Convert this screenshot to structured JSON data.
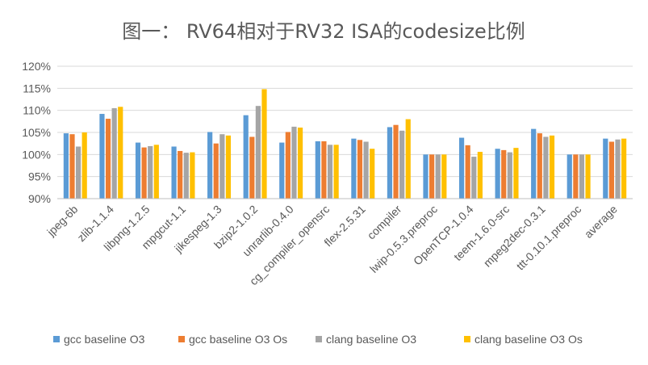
{
  "chart_data": {
    "type": "bar",
    "title": "图一： RV64相对于RV32 ISA的codesize比例",
    "xlabel": "",
    "ylabel": "",
    "ylim": [
      90,
      120
    ],
    "y_ticks": [
      "90%",
      "95%",
      "100%",
      "105%",
      "110%",
      "115%",
      "120%"
    ],
    "y_tick_values": [
      90,
      95,
      100,
      105,
      110,
      115,
      120
    ],
    "grid": true,
    "legend_position": "bottom",
    "categories": [
      "jpeg-6b",
      "zlib-1.1.4",
      "libpng-1.2.5",
      "mpgcut-1.1",
      "jikespeg-1.3",
      "bzip2-1.0.2",
      "unrarlib-0.4.0",
      "cg_compiler_opensrc",
      "flex-2.5.31",
      "compiler",
      "lwip-0.5.3.preproc",
      "OpenTCP-1.0.4",
      "teem-1.6.0-src",
      "mpeg2dec-0.3.1",
      "ttt-0.10.1.preproc",
      "average"
    ],
    "series": [
      {
        "name": "gcc baseline O3",
        "color": "#5B9BD5",
        "values": [
          104.8,
          109.2,
          102.7,
          101.8,
          105.1,
          108.9,
          102.7,
          103.0,
          103.6,
          106.2,
          100.0,
          103.8,
          101.3,
          105.8,
          100.0,
          103.6
        ]
      },
      {
        "name": "gcc baseline O3 Os",
        "color": "#ED7D31",
        "values": [
          104.6,
          108.1,
          101.6,
          100.8,
          102.5,
          104.0,
          105.1,
          103.0,
          103.3,
          106.7,
          100.0,
          102.1,
          101.0,
          104.8,
          100.0,
          102.9
        ]
      },
      {
        "name": "clang baseline O3",
        "color": "#A5A5A5",
        "values": [
          101.8,
          110.5,
          101.9,
          100.4,
          104.6,
          111.0,
          106.3,
          102.2,
          102.9,
          105.4,
          100.0,
          99.5,
          100.5,
          104.0,
          100.0,
          103.4
        ]
      },
      {
        "name": "clang baseline O3 Os",
        "color": "#FFC000",
        "values": [
          105.0,
          110.8,
          102.2,
          100.5,
          104.3,
          114.8,
          106.1,
          102.2,
          101.3,
          108.0,
          100.0,
          100.6,
          101.5,
          104.3,
          100.0,
          103.6
        ]
      }
    ]
  },
  "style": {
    "grid_color": "#d9d9d9",
    "axis_color": "#bfbfbf",
    "text_color": "#595959"
  }
}
